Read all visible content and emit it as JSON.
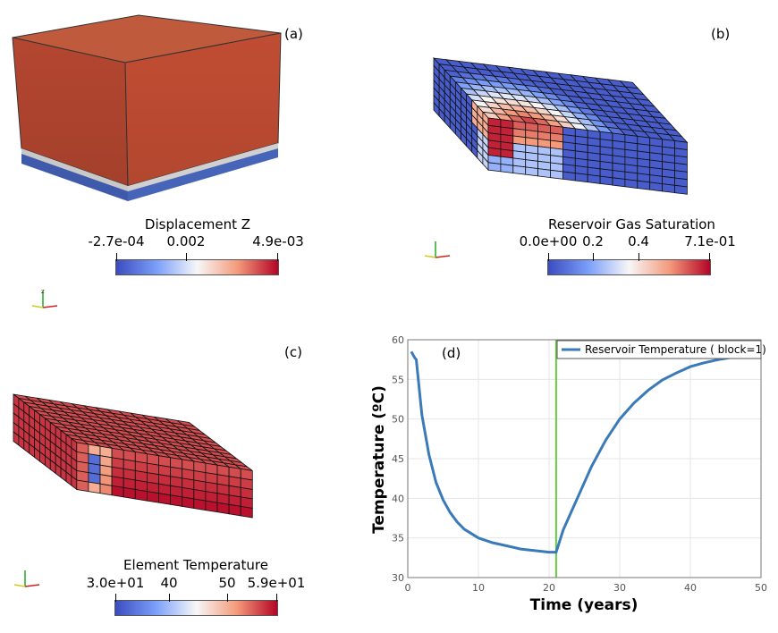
{
  "panels": {
    "a": {
      "label": "(a)",
      "colorbar": {
        "title": "Displacement Z",
        "ticks": [
          "-2.7e-04",
          "0.002",
          "4.9e-03"
        ]
      }
    },
    "b": {
      "label": "(b)",
      "colorbar": {
        "title": "Reservoir Gas Saturation",
        "ticks": [
          "0.0e+00",
          "0.2",
          "0.4",
          "7.1e-01"
        ]
      }
    },
    "c": {
      "label": "(c)",
      "colorbar": {
        "title": "Element Temperature",
        "ticks": [
          "3.0e+01",
          "40",
          "50",
          "5.9e+01"
        ]
      }
    },
    "d": {
      "label": "(d)"
    }
  },
  "colors": {
    "cool": "#3b4cc0",
    "warm": "#b40426",
    "mid": "#f7f7f7",
    "line": "#3a7ab8",
    "marker": "#66cc44",
    "grid": "#e6e6e6"
  },
  "chart_data": {
    "type": "line",
    "xlabel": "Time (years)",
    "ylabel": "Temperature (ºC)",
    "xlim": [
      0,
      50
    ],
    "ylim": [
      30,
      60
    ],
    "xticks": [
      0,
      10,
      20,
      30,
      40,
      50
    ],
    "yticks": [
      30,
      35,
      40,
      45,
      50,
      55,
      60
    ],
    "grid": true,
    "legend": "top-right",
    "vline_x": 21,
    "series": [
      {
        "name": "Reservoir Temperature ( block=1)",
        "x": [
          0.5,
          1.0,
          1.2,
          2,
          3,
          4,
          5,
          6,
          7,
          8,
          10,
          12,
          14,
          16,
          18,
          20,
          21,
          22,
          24,
          26,
          28,
          30,
          32,
          34,
          36,
          38,
          40,
          42,
          44,
          46,
          48
        ],
        "y": [
          58.5,
          57.7,
          57.5,
          50.5,
          45.5,
          42.0,
          39.8,
          38.2,
          37.0,
          36.1,
          35.0,
          34.4,
          34.0,
          33.6,
          33.4,
          33.2,
          33.2,
          36.0,
          40.0,
          44.0,
          47.3,
          50.0,
          52.0,
          53.6,
          54.9,
          55.8,
          56.6,
          57.1,
          57.5,
          57.8,
          58.0
        ]
      }
    ]
  }
}
